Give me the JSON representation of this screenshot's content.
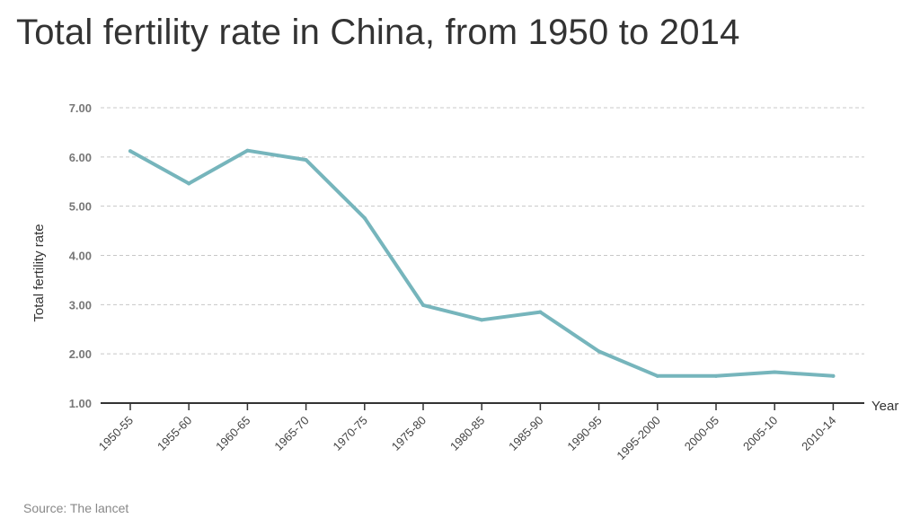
{
  "title": "Total fertility rate in China, from 1950 to 2014",
  "source": "Source: The lancet",
  "chart_data": {
    "type": "line",
    "title": "Total fertility rate in China, from 1950 to 2014",
    "xlabel": "Year",
    "ylabel": "Total fertility rate",
    "ylim": [
      1,
      7
    ],
    "yticks": [
      "1.00",
      "2.00",
      "3.00",
      "4.00",
      "5.00",
      "6.00",
      "7.00"
    ],
    "grid": true,
    "categories": [
      "1950-55",
      "1955-60",
      "1960-65",
      "1965-70",
      "1970-75",
      "1975-80",
      "1980-85",
      "1985-90",
      "1990-95",
      "1995-2000",
      "2000-05",
      "2005-10",
      "2010-14"
    ],
    "series": [
      {
        "values": [
          6.12,
          5.46,
          6.13,
          5.94,
          4.76,
          2.99,
          2.69,
          2.85,
          2.05,
          1.55,
          1.55,
          1.63,
          1.55
        ],
        "color": "#76b5bc"
      }
    ]
  }
}
